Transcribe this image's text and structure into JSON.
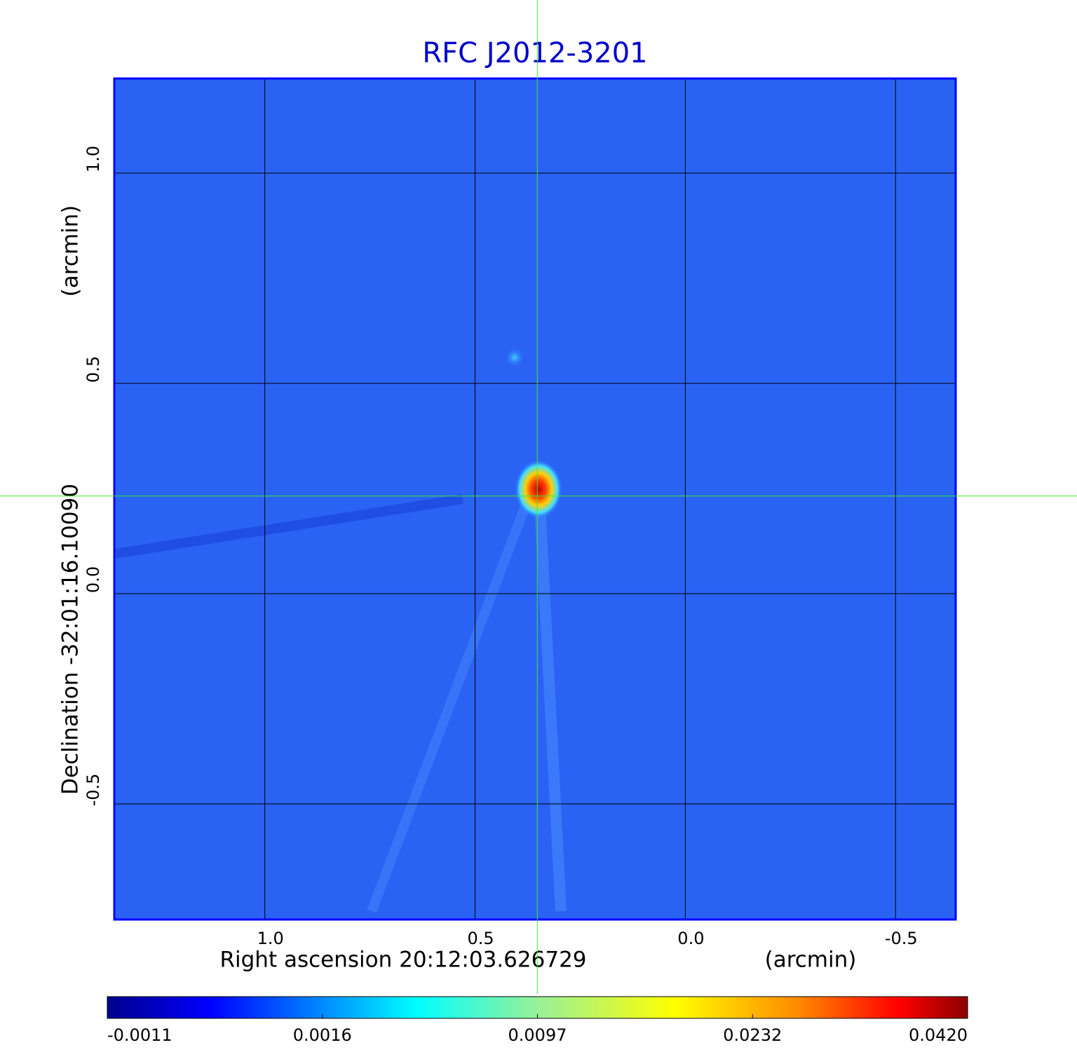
{
  "chart_data": {
    "type": "image",
    "title": "RFC J2012-3201",
    "x_label": "Right ascension  20:12:03.626729",
    "x_unit": "(arcmin)",
    "y_label": "Declination  -32:01:16.10090",
    "y_unit": "(arcmin)",
    "xlim": [
      1.358,
      -0.643
    ],
    "ylim": [
      -0.775,
      1.225
    ],
    "xticks": [
      {
        "value": 1,
        "label": "1.0"
      },
      0.5,
      {
        "value": 0,
        "label": "0.0"
      },
      -0.5
    ],
    "yticks": [
      {
        "value": 1,
        "label": "1.0"
      },
      0.5,
      {
        "value": 0,
        "label": "0.0"
      },
      -0.5
    ],
    "grid": true,
    "crosshair": {
      "x": 0.352,
      "y": 0.232
    },
    "colorbar_ticks": [
      -0.0011,
      0.0016,
      0.0097,
      0.0232,
      {
        "value": 0.042,
        "label": "0.0420"
      }
    ]
  }
}
